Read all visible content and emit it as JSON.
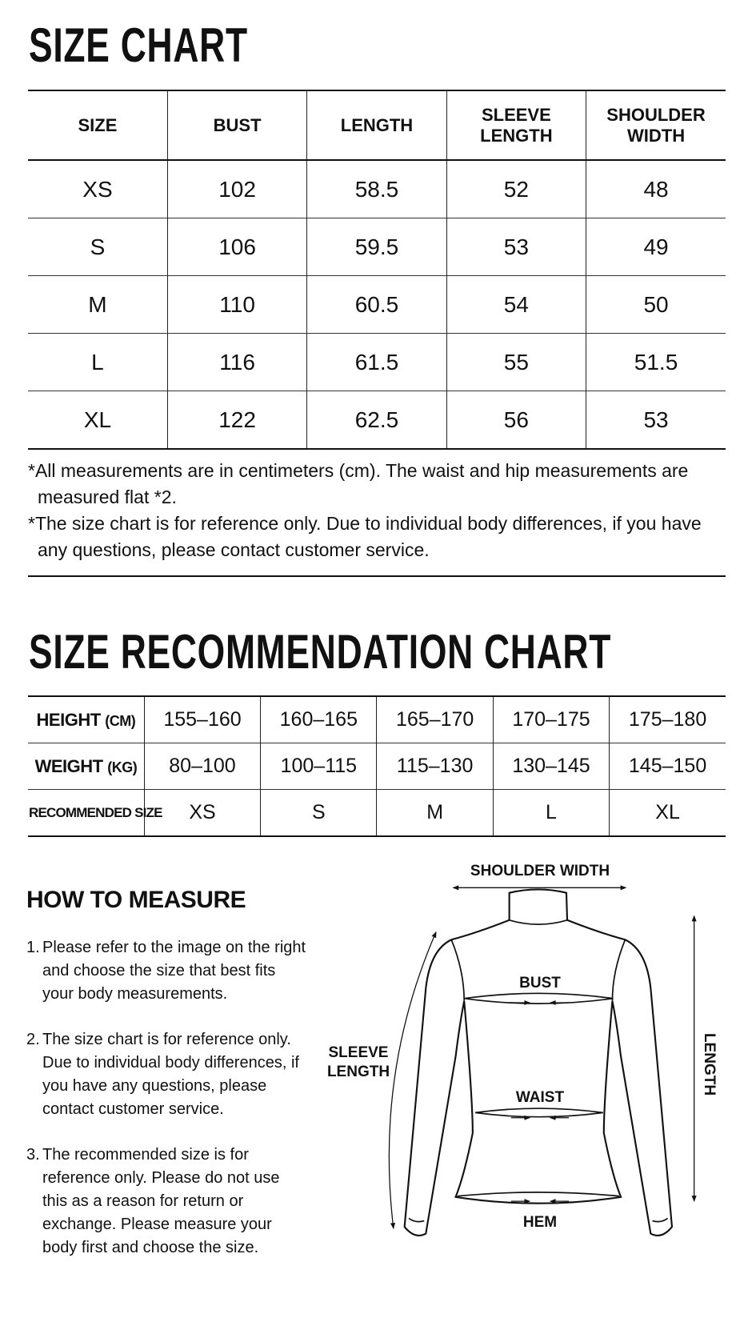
{
  "size_chart": {
    "title": "SIZE CHART",
    "header": [
      "SIZE",
      "BUST",
      "LENGTH",
      "SLEEVE LENGTH",
      "SHOULDER WIDTH"
    ],
    "rows": [
      [
        "XS",
        "102",
        "58.5",
        "52",
        "48"
      ],
      [
        "S",
        "106",
        "59.5",
        "53",
        "49"
      ],
      [
        "M",
        "110",
        "60.5",
        "54",
        "50"
      ],
      [
        "L",
        "116",
        "61.5",
        "55",
        "51.5"
      ],
      [
        "XL",
        "122",
        "62.5",
        "56",
        "53"
      ]
    ],
    "notes": [
      "*All measurements are in centimeters (cm). The waist and hip measurements are measured flat *2.",
      "*The size chart is for reference only. Due to individual body differences, if you have any questions, please contact customer service."
    ]
  },
  "recommendation": {
    "title": "SIZE RECOMMENDATION CHART",
    "rows": [
      {
        "label": "HEIGHT",
        "unit": "(CM)",
        "values": [
          "155–160",
          "160–165",
          "165–170",
          "170–175",
          "175–180"
        ]
      },
      {
        "label": "WEIGHT",
        "unit": "(KG)",
        "values": [
          "80–100",
          "100–115",
          "115–130",
          "130–145",
          "145–150"
        ]
      },
      {
        "label": "RECOMMENDED SIZE",
        "values": [
          "XS",
          "S",
          "M",
          "L",
          "XL"
        ]
      }
    ]
  },
  "how_to_measure": {
    "title": "HOW TO MEASURE",
    "steps": [
      {
        "number": "1.",
        "text": "Please refer to the image on the right and choose the size that best fits your body measurements."
      },
      {
        "number": "2.",
        "text": "The size chart is for reference only. Due to individual body differences, if you have any questions, please contact customer service."
      },
      {
        "number": "3.",
        "text": "The recommended size is for reference only. Please do not use this as a reason for return or exchange. Please measure your body first and choose the size."
      }
    ]
  },
  "diagram": {
    "shoulder_width": "SHOULDER WIDTH",
    "bust": "BUST",
    "sleeve_length": "SLEEVE LENGTH",
    "waist": "WAIST",
    "length": "LENGTH",
    "hem": "HEM"
  }
}
